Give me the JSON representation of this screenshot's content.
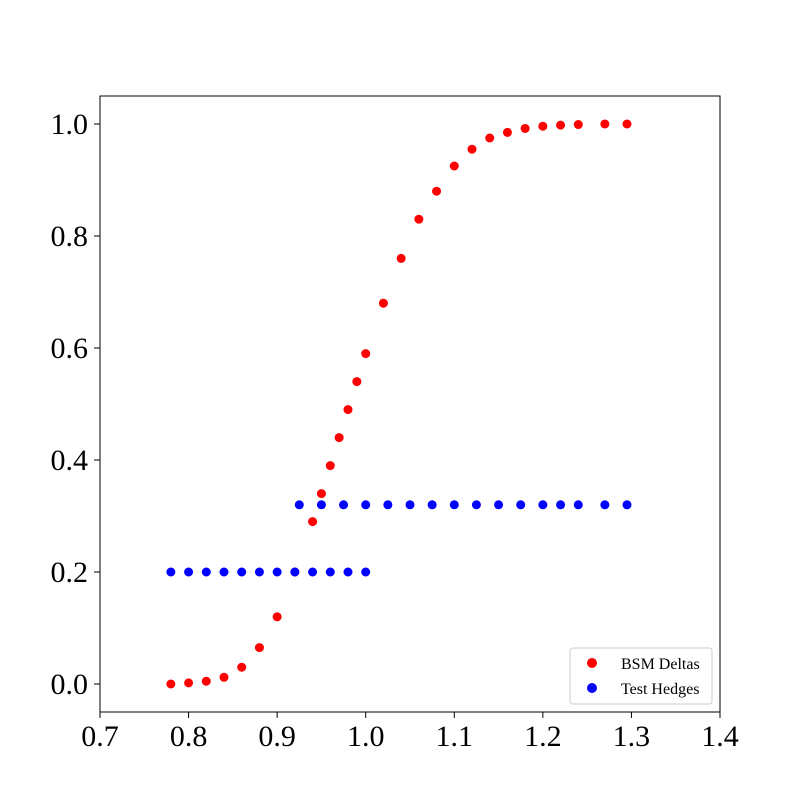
{
  "chart_data": {
    "type": "scatter",
    "title": "",
    "xlabel": "",
    "ylabel": "",
    "xlim": [
      0.7,
      1.4
    ],
    "ylim": [
      -0.05,
      1.05
    ],
    "xticks": [
      0.7,
      0.8,
      0.9,
      1.0,
      1.1,
      1.2,
      1.3,
      1.4
    ],
    "xtick_labels": [
      "0.7",
      "0.8",
      "0.9",
      "1.0",
      "1.1",
      "1.2",
      "1.3",
      "1.4"
    ],
    "yticks": [
      0.0,
      0.2,
      0.4,
      0.6,
      0.8,
      1.0
    ],
    "ytick_labels": [
      "0.0",
      "0.2",
      "0.4",
      "0.6",
      "0.8",
      "1.0"
    ],
    "grid": false,
    "legend_position": "lower-right",
    "series": [
      {
        "name": "BSM Deltas",
        "color": "#ff0000",
        "points": [
          [
            0.78,
            0.0
          ],
          [
            0.8,
            0.002
          ],
          [
            0.82,
            0.005
          ],
          [
            0.84,
            0.012
          ],
          [
            0.86,
            0.03
          ],
          [
            0.88,
            0.065
          ],
          [
            0.9,
            0.12
          ],
          [
            0.92,
            0.2
          ],
          [
            0.94,
            0.29
          ],
          [
            0.95,
            0.34
          ],
          [
            0.96,
            0.39
          ],
          [
            0.97,
            0.44
          ],
          [
            0.98,
            0.49
          ],
          [
            0.99,
            0.54
          ],
          [
            1.0,
            0.59
          ],
          [
            1.02,
            0.68
          ],
          [
            1.04,
            0.76
          ],
          [
            1.06,
            0.83
          ],
          [
            1.08,
            0.88
          ],
          [
            1.1,
            0.925
          ],
          [
            1.12,
            0.955
          ],
          [
            1.14,
            0.975
          ],
          [
            1.16,
            0.985
          ],
          [
            1.18,
            0.992
          ],
          [
            1.2,
            0.996
          ],
          [
            1.22,
            0.998
          ],
          [
            1.24,
            0.999
          ],
          [
            1.27,
            1.0
          ],
          [
            1.295,
            1.0
          ]
        ]
      },
      {
        "name": "Test Hedges",
        "color": "#0000ff",
        "points": [
          [
            0.78,
            0.2
          ],
          [
            0.8,
            0.2
          ],
          [
            0.82,
            0.2
          ],
          [
            0.84,
            0.2
          ],
          [
            0.86,
            0.2
          ],
          [
            0.88,
            0.2
          ],
          [
            0.9,
            0.2
          ],
          [
            0.92,
            0.2
          ],
          [
            0.94,
            0.2
          ],
          [
            0.96,
            0.2
          ],
          [
            0.98,
            0.2
          ],
          [
            1.0,
            0.2
          ],
          [
            0.925,
            0.32
          ],
          [
            0.95,
            0.32
          ],
          [
            0.975,
            0.32
          ],
          [
            1.0,
            0.32
          ],
          [
            1.025,
            0.32
          ],
          [
            1.05,
            0.32
          ],
          [
            1.075,
            0.32
          ],
          [
            1.1,
            0.32
          ],
          [
            1.125,
            0.32
          ],
          [
            1.15,
            0.32
          ],
          [
            1.175,
            0.32
          ],
          [
            1.2,
            0.32
          ],
          [
            1.22,
            0.32
          ],
          [
            1.24,
            0.32
          ],
          [
            1.27,
            0.32
          ],
          [
            1.295,
            0.32
          ]
        ]
      }
    ]
  }
}
